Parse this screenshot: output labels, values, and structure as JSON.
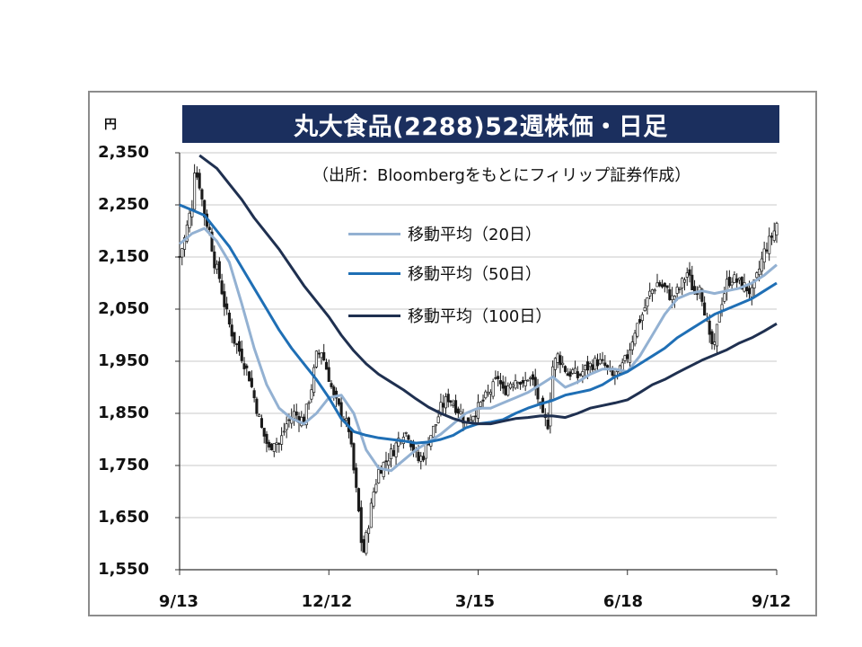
{
  "title": "丸大食品(2288)52週株価・日足",
  "unit_label": "円",
  "source_note": "（出所：Bloombergをもとにフィリップ証券作成）",
  "colors": {
    "title_bg": "#1b2f5e",
    "candle": "#1a1a1a",
    "ma20": "#93b1d2",
    "ma50": "#1f6fb5",
    "ma100": "#1f3050",
    "grid": "#c8c8c8"
  },
  "chart_data": {
    "type": "line",
    "subtype": "candlestick-with-moving-averages",
    "title": "丸大食品(2288)52週株価・日足",
    "ylabel": "円",
    "ylim": [
      1550,
      2350
    ],
    "yticks": [
      "2,350",
      "2,250",
      "2,150",
      "2,050",
      "1,950",
      "1,850",
      "1,750",
      "1,650",
      "1,550"
    ],
    "yticks_values": [
      2350,
      2250,
      2150,
      2050,
      1950,
      1850,
      1750,
      1650,
      1550
    ],
    "x_ticks": [
      "9/13",
      "12/12",
      "3/15",
      "6/18",
      "9/12"
    ],
    "x_tick_index": [
      0,
      60,
      120,
      180,
      240
    ],
    "x_count": 241,
    "grid": true,
    "legend": {
      "position": "upper-center"
    },
    "series": [
      {
        "name": "移動平均（20日）",
        "color": "#93b1d2",
        "points": [
          [
            0,
            2175
          ],
          [
            5,
            2195
          ],
          [
            10,
            2205
          ],
          [
            15,
            2180
          ],
          [
            20,
            2140
          ],
          [
            25,
            2060
          ],
          [
            30,
            1975
          ],
          [
            35,
            1905
          ],
          [
            40,
            1860
          ],
          [
            45,
            1840
          ],
          [
            50,
            1830
          ],
          [
            55,
            1850
          ],
          [
            60,
            1880
          ],
          [
            65,
            1885
          ],
          [
            70,
            1850
          ],
          [
            75,
            1780
          ],
          [
            80,
            1745
          ],
          [
            85,
            1740
          ],
          [
            90,
            1760
          ],
          [
            95,
            1780
          ],
          [
            100,
            1795
          ],
          [
            105,
            1810
          ],
          [
            110,
            1830
          ],
          [
            115,
            1850
          ],
          [
            120,
            1860
          ],
          [
            125,
            1860
          ],
          [
            130,
            1870
          ],
          [
            135,
            1880
          ],
          [
            140,
            1890
          ],
          [
            145,
            1905
          ],
          [
            150,
            1920
          ],
          [
            155,
            1900
          ],
          [
            160,
            1910
          ],
          [
            165,
            1925
          ],
          [
            170,
            1935
          ],
          [
            175,
            1935
          ],
          [
            180,
            1930
          ],
          [
            185,
            1960
          ],
          [
            190,
            2000
          ],
          [
            195,
            2040
          ],
          [
            200,
            2070
          ],
          [
            205,
            2080
          ],
          [
            210,
            2085
          ],
          [
            215,
            2080
          ],
          [
            220,
            2085
          ],
          [
            225,
            2090
          ],
          [
            230,
            2100
          ],
          [
            235,
            2115
          ],
          [
            240,
            2135
          ]
        ]
      },
      {
        "name": "移動平均（50日）",
        "color": "#1f6fb5",
        "points": [
          [
            0,
            2250
          ],
          [
            5,
            2240
          ],
          [
            10,
            2230
          ],
          [
            15,
            2200
          ],
          [
            20,
            2170
          ],
          [
            25,
            2130
          ],
          [
            30,
            2090
          ],
          [
            35,
            2050
          ],
          [
            40,
            2010
          ],
          [
            45,
            1975
          ],
          [
            50,
            1945
          ],
          [
            55,
            1915
          ],
          [
            60,
            1880
          ],
          [
            65,
            1840
          ],
          [
            70,
            1815
          ],
          [
            75,
            1808
          ],
          [
            80,
            1803
          ],
          [
            85,
            1800
          ],
          [
            90,
            1797
          ],
          [
            95,
            1793
          ],
          [
            100,
            1795
          ],
          [
            105,
            1800
          ],
          [
            110,
            1808
          ],
          [
            115,
            1822
          ],
          [
            120,
            1830
          ],
          [
            125,
            1833
          ],
          [
            130,
            1838
          ],
          [
            135,
            1850
          ],
          [
            140,
            1860
          ],
          [
            145,
            1868
          ],
          [
            150,
            1875
          ],
          [
            155,
            1885
          ],
          [
            160,
            1890
          ],
          [
            165,
            1895
          ],
          [
            170,
            1905
          ],
          [
            175,
            1920
          ],
          [
            180,
            1930
          ],
          [
            185,
            1945
          ],
          [
            190,
            1960
          ],
          [
            195,
            1975
          ],
          [
            200,
            1995
          ],
          [
            205,
            2010
          ],
          [
            210,
            2025
          ],
          [
            215,
            2040
          ],
          [
            220,
            2050
          ],
          [
            225,
            2060
          ],
          [
            230,
            2070
          ],
          [
            235,
            2085
          ],
          [
            240,
            2100
          ]
        ]
      },
      {
        "name": "移動平均（100日）",
        "color": "#1f3050",
        "points": [
          [
            8,
            2345
          ],
          [
            15,
            2320
          ],
          [
            20,
            2290
          ],
          [
            25,
            2260
          ],
          [
            30,
            2225
          ],
          [
            35,
            2195
          ],
          [
            40,
            2165
          ],
          [
            45,
            2130
          ],
          [
            50,
            2095
          ],
          [
            55,
            2065
          ],
          [
            60,
            2035
          ],
          [
            65,
            2000
          ],
          [
            70,
            1970
          ],
          [
            75,
            1945
          ],
          [
            80,
            1925
          ],
          [
            85,
            1910
          ],
          [
            90,
            1895
          ],
          [
            95,
            1878
          ],
          [
            100,
            1862
          ],
          [
            105,
            1850
          ],
          [
            110,
            1840
          ],
          [
            115,
            1833
          ],
          [
            120,
            1830
          ],
          [
            125,
            1830
          ],
          [
            130,
            1835
          ],
          [
            135,
            1840
          ],
          [
            140,
            1842
          ],
          [
            145,
            1845
          ],
          [
            150,
            1845
          ],
          [
            155,
            1842
          ],
          [
            160,
            1850
          ],
          [
            165,
            1860
          ],
          [
            170,
            1865
          ],
          [
            175,
            1870
          ],
          [
            180,
            1876
          ],
          [
            185,
            1890
          ],
          [
            190,
            1905
          ],
          [
            195,
            1915
          ],
          [
            200,
            1928
          ],
          [
            205,
            1940
          ],
          [
            210,
            1952
          ],
          [
            215,
            1962
          ],
          [
            220,
            1972
          ],
          [
            225,
            1985
          ],
          [
            230,
            1995
          ],
          [
            235,
            2008
          ],
          [
            240,
            2022
          ]
        ]
      }
    ],
    "close_path": [
      [
        0,
        2150
      ],
      [
        2,
        2185
      ],
      [
        4,
        2230
      ],
      [
        5,
        2250
      ],
      [
        6,
        2320
      ],
      [
        8,
        2290
      ],
      [
        10,
        2230
      ],
      [
        12,
        2200
      ],
      [
        14,
        2140
      ],
      [
        16,
        2110
      ],
      [
        18,
        2060
      ],
      [
        20,
        2020
      ],
      [
        22,
        1990
      ],
      [
        25,
        1960
      ],
      [
        28,
        1920
      ],
      [
        30,
        1880
      ],
      [
        33,
        1820
      ],
      [
        36,
        1780
      ],
      [
        38,
        1800
      ],
      [
        40,
        1790
      ],
      [
        43,
        1830
      ],
      [
        46,
        1850
      ],
      [
        50,
        1835
      ],
      [
        53,
        1900
      ],
      [
        55,
        1960
      ],
      [
        57,
        1970
      ],
      [
        60,
        1920
      ],
      [
        62,
        1880
      ],
      [
        65,
        1850
      ],
      [
        68,
        1820
      ],
      [
        70,
        1740
      ],
      [
        72,
        1660
      ],
      [
        73,
        1605
      ],
      [
        74,
        1585
      ],
      [
        76,
        1640
      ],
      [
        78,
        1700
      ],
      [
        80,
        1740
      ],
      [
        83,
        1760
      ],
      [
        86,
        1780
      ],
      [
        88,
        1800
      ],
      [
        90,
        1815
      ],
      [
        92,
        1810
      ],
      [
        94,
        1780
      ],
      [
        96,
        1760
      ],
      [
        98,
        1770
      ],
      [
        100,
        1800
      ],
      [
        103,
        1830
      ],
      [
        105,
        1860
      ],
      [
        108,
        1880
      ],
      [
        110,
        1870
      ],
      [
        113,
        1850
      ],
      [
        115,
        1830
      ],
      [
        118,
        1850
      ],
      [
        120,
        1860
      ],
      [
        123,
        1880
      ],
      [
        126,
        1900
      ],
      [
        128,
        1920
      ],
      [
        130,
        1890
      ],
      [
        133,
        1910
      ],
      [
        136,
        1920
      ],
      [
        138,
        1900
      ],
      [
        140,
        1920
      ],
      [
        142,
        1910
      ],
      [
        144,
        1880
      ],
      [
        146,
        1840
      ],
      [
        148,
        1830
      ],
      [
        150,
        1940
      ],
      [
        152,
        1960
      ],
      [
        154,
        1945
      ],
      [
        156,
        1925
      ],
      [
        158,
        1930
      ],
      [
        160,
        1920
      ],
      [
        163,
        1935
      ],
      [
        166,
        1945
      ],
      [
        168,
        1950
      ],
      [
        171,
        1940
      ],
      [
        174,
        1920
      ],
      [
        177,
        1930
      ],
      [
        180,
        1960
      ],
      [
        183,
        2010
      ],
      [
        186,
        2040
      ],
      [
        189,
        2080
      ],
      [
        192,
        2100
      ],
      [
        195,
        2090
      ],
      [
        198,
        2070
      ],
      [
        201,
        2090
      ],
      [
        204,
        2120
      ],
      [
        207,
        2080
      ],
      [
        209,
        2100
      ],
      [
        211,
        2050
      ],
      [
        213,
        1990
      ],
      [
        215,
        1975
      ],
      [
        217,
        2050
      ],
      [
        220,
        2100
      ],
      [
        222,
        2110
      ],
      [
        225,
        2100
      ],
      [
        228,
        2090
      ],
      [
        230,
        2080
      ],
      [
        232,
        2110
      ],
      [
        235,
        2160
      ],
      [
        237,
        2180
      ],
      [
        239,
        2200
      ],
      [
        240,
        2215
      ]
    ]
  }
}
